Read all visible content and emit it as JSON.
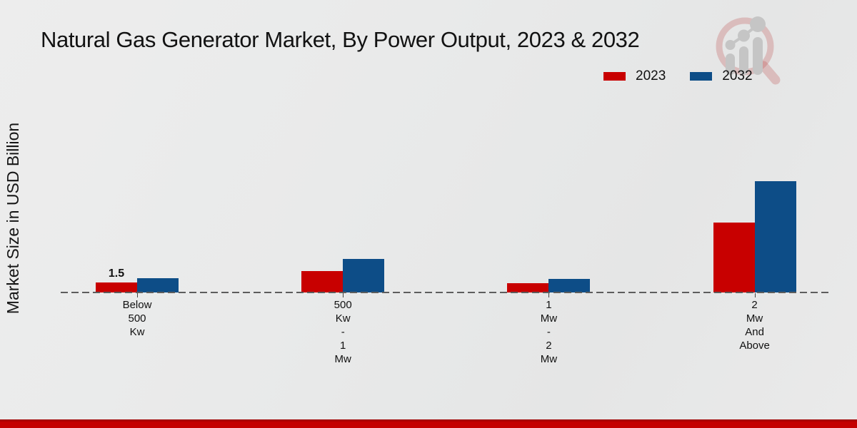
{
  "title": "Natural Gas Generator Market, By Power Output, 2023 & 2032",
  "ylabel": "Market Size in USD Billion",
  "legend": {
    "items": [
      {
        "label": "2023",
        "color": "#c80000"
      },
      {
        "label": "2032",
        "color": "#0d4d87"
      }
    ]
  },
  "icons": {
    "logo": "magnifier-bar-chart-watermark-logo"
  },
  "colors": {
    "series_2023": "#c80000",
    "series_2032": "#0d4d87",
    "footer_bar": "#c40000",
    "baseline": "#5d5d5d",
    "background": "#e9e9e9"
  },
  "chart_data": {
    "type": "bar",
    "title": "Natural Gas Generator Market, By Power Output, 2023 & 2032",
    "xlabel": "",
    "ylabel": "Market Size in USD Billion",
    "categories": [
      "Below 500 Kw",
      "500 Kw - 1 Mw",
      "1 Mw - 2 Mw",
      "2 Mw And Above"
    ],
    "category_label_lines": [
      [
        "Below",
        "500",
        "Kw"
      ],
      [
        "500",
        "Kw",
        "-",
        "1",
        "Mw"
      ],
      [
        "1",
        "Mw",
        "-",
        "2",
        "Mw"
      ],
      [
        "2",
        "Mw",
        "And",
        "Above"
      ]
    ],
    "series": [
      {
        "name": "2023",
        "color": "#c80000",
        "values": [
          1.5,
          3.1,
          1.4,
          10.2
        ]
      },
      {
        "name": "2032",
        "color": "#0d4d87",
        "values": [
          2.1,
          4.9,
          2.0,
          16.3
        ]
      }
    ],
    "annotations": [
      {
        "category_index": 0,
        "series_index": 0,
        "text": "1.5"
      }
    ],
    "baseline_value": 0,
    "grid": false,
    "baseline_style": "dashed",
    "legend_position": "top-right"
  }
}
